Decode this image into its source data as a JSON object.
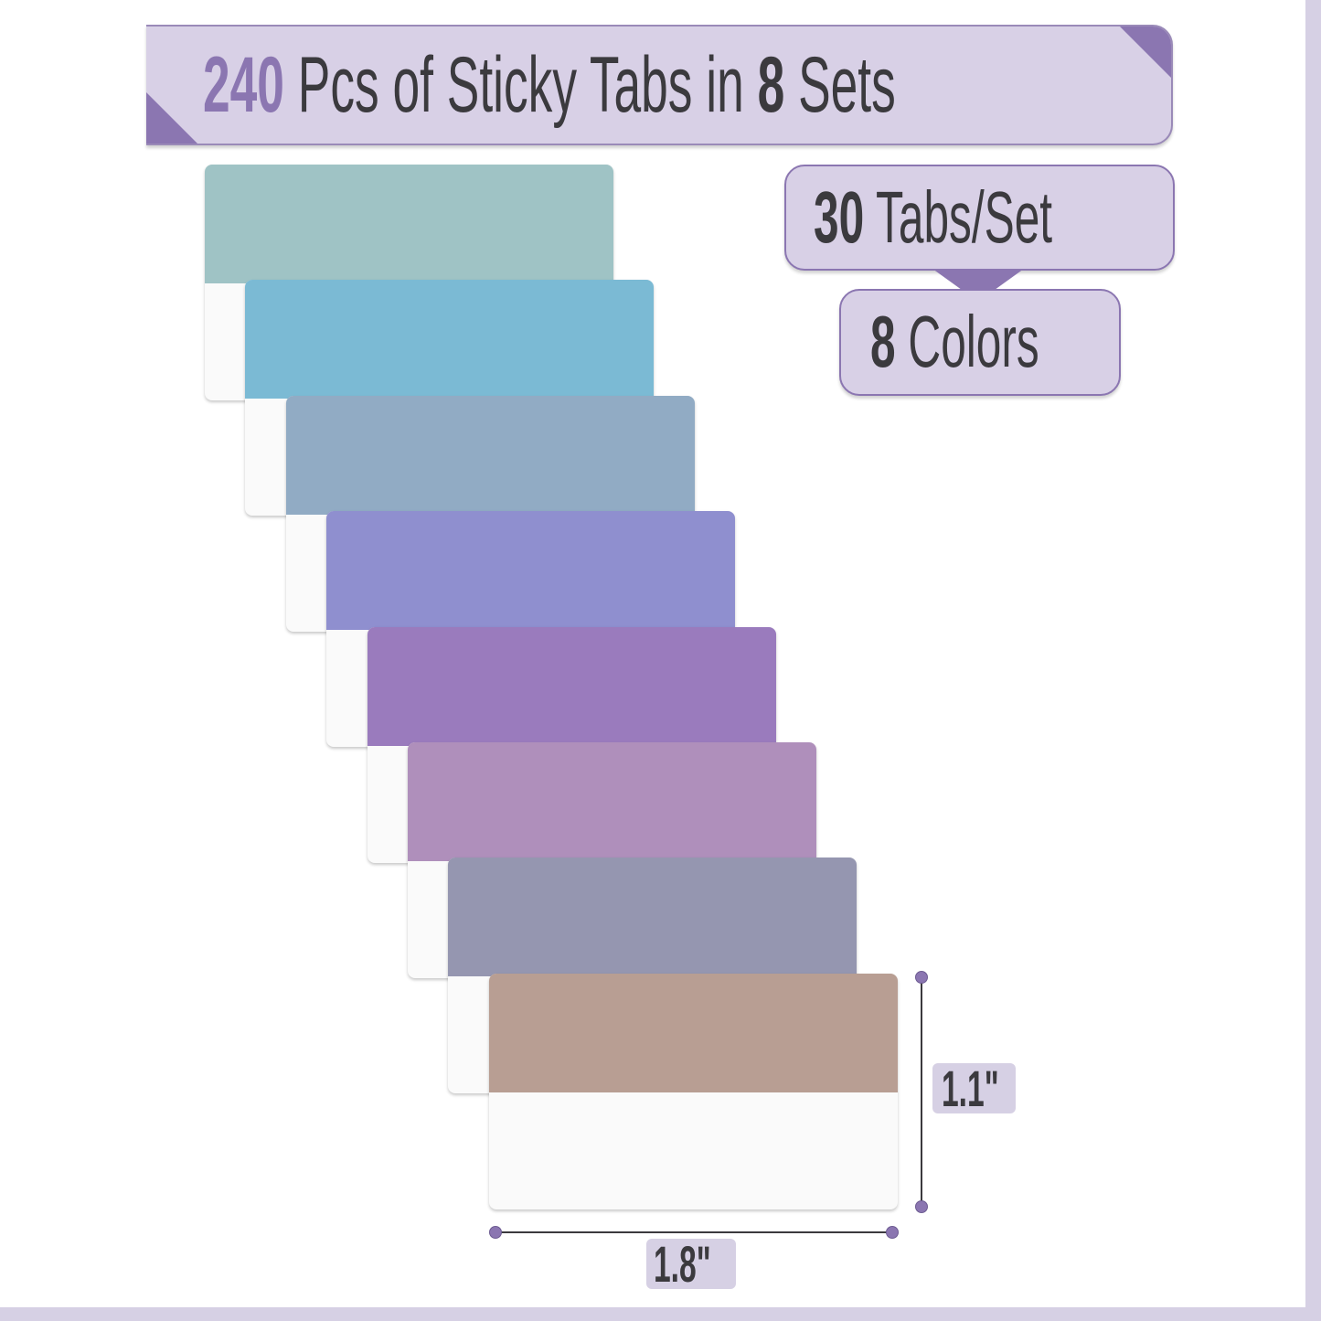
{
  "title": {
    "count": "240",
    "middle": "Pcs of Sticky Tabs in",
    "sets_count": "8",
    "end": "Sets"
  },
  "badges": {
    "tabs_per_set": {
      "number": "30",
      "label": "Tabs/Set"
    },
    "colors": {
      "number": "8",
      "label": "Colors"
    }
  },
  "dimensions": {
    "height": "1.1\"",
    "width": "1.8\""
  },
  "accent_color": "#8b76b1",
  "tab_colors": [
    "#9fc3c5",
    "#7bbad4",
    "#91abc4",
    "#8f8fcf",
    "#9a7bbd",
    "#af8fbb",
    "#9596b0",
    "#b89e93"
  ]
}
